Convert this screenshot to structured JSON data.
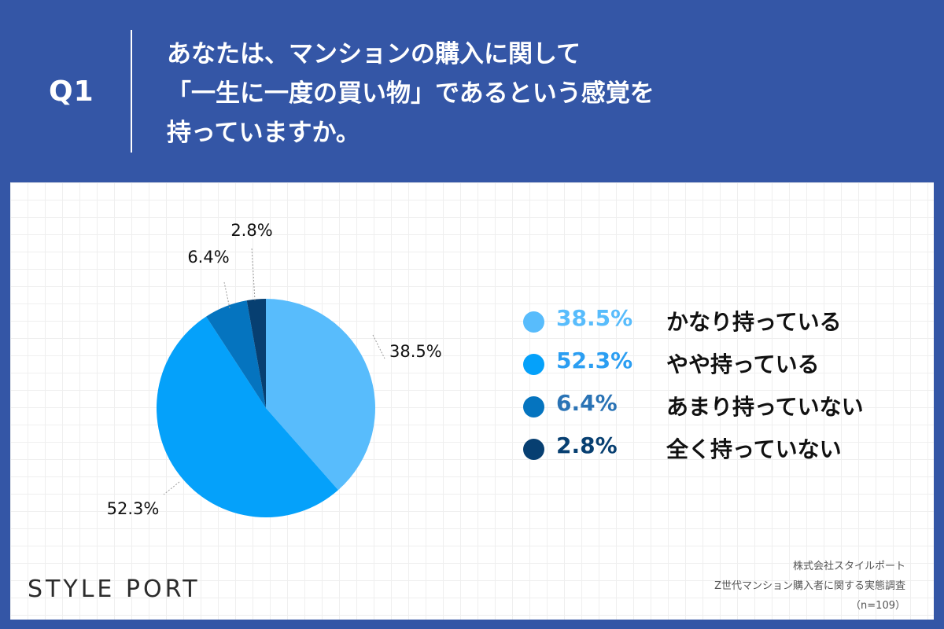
{
  "header": {
    "q_label": "Q1",
    "question_lines": [
      "あなたは、マンションの購入に関して",
      "「一生に一度の買い物」であるという感覚を",
      "持っていますか。"
    ]
  },
  "chart_data": {
    "type": "pie",
    "slices": [
      {
        "label": "かなり持っている",
        "value": 38.5,
        "display": "38.5%",
        "color": "#58bcfc"
      },
      {
        "label": "やや持っている",
        "value": 52.3,
        "display": "52.3%",
        "color": "#05a1fa"
      },
      {
        "label": "あまり持っていない",
        "value": 6.4,
        "display": "6.4%",
        "color": "#0574bf"
      },
      {
        "label": "全く持っていない",
        "value": 2.8,
        "display": "2.8%",
        "color": "#073f71"
      }
    ],
    "legend_placement": "right"
  },
  "legend": {
    "pct_colors": [
      "#58bcfc",
      "#2b9ef2",
      "#2a73b5",
      "#073f71"
    ]
  },
  "footer": {
    "logo": "STYLE PORT",
    "source_lines": [
      "株式会社スタイルポート",
      "Z世代マンション購入者に関する実態調査",
      "（n=109）"
    ]
  },
  "colors": {
    "background": "#3456a6",
    "panel": "#ffffff"
  }
}
